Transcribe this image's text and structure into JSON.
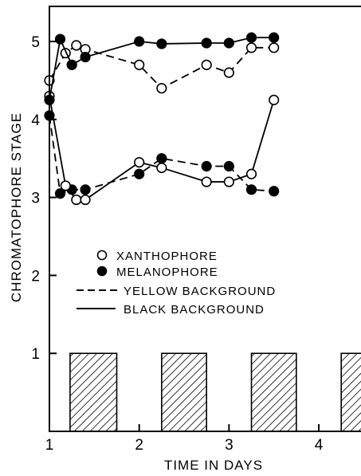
{
  "chart_data": {
    "type": "line",
    "title": "",
    "xlabel": "TIME IN DAYS",
    "ylabel": "CHROMATOPHORE STAGE",
    "xlim": [
      1,
      4.55
    ],
    "ylim": [
      0,
      5.45
    ],
    "xticks": [
      "1",
      "2",
      "3",
      "4"
    ],
    "yticks": [
      "1",
      "2",
      "3",
      "4",
      "5"
    ],
    "grid": false,
    "legend_position": "center-left",
    "legend": {
      "xanthophore": "XANTHOPHORE",
      "melanophore": "MELANOPHORE",
      "yellow_background": "YELLOW BACKGROUND",
      "black_background": "BLACK BACKGROUND"
    },
    "series": [
      {
        "name": "XANTHOPHORE",
        "background": "YELLOW BACKGROUND",
        "marker": "open-circle",
        "line": "dashed",
        "x": [
          1.0,
          1.18,
          1.3,
          1.4,
          2.0,
          2.25,
          2.75,
          3.0,
          3.25,
          3.5
        ],
        "y": [
          4.5,
          4.85,
          4.95,
          4.9,
          4.7,
          4.4,
          4.7,
          4.6,
          4.92,
          4.92
        ]
      },
      {
        "name": "MELANOPHORE",
        "background": "YELLOW BACKGROUND",
        "marker": "filled-circle",
        "line": "dashed",
        "x": [
          1.0,
          1.12,
          1.25,
          1.4,
          2.0,
          2.25,
          2.75,
          3.0,
          3.25,
          3.5
        ],
        "y": [
          4.05,
          3.05,
          3.1,
          3.1,
          3.3,
          3.5,
          3.4,
          3.4,
          3.1,
          3.08
        ]
      },
      {
        "name": "XANTHOPHORE",
        "background": "BLACK BACKGROUND",
        "marker": "open-circle",
        "line": "solid",
        "x": [
          1.0,
          1.18,
          1.3,
          1.4,
          2.0,
          2.25,
          2.75,
          3.0,
          3.25,
          3.5
        ],
        "y": [
          4.3,
          3.15,
          2.97,
          2.97,
          3.45,
          3.38,
          3.2,
          3.2,
          3.3,
          4.25
        ]
      },
      {
        "name": "MELANOPHORE",
        "background": "BLACK BACKGROUND",
        "marker": "filled-circle",
        "line": "solid",
        "x": [
          1.0,
          1.12,
          1.25,
          1.4,
          2.0,
          2.25,
          2.75,
          3.0,
          3.25,
          3.5
        ],
        "y": [
          4.25,
          5.03,
          4.7,
          4.8,
          5.0,
          4.97,
          4.98,
          4.98,
          5.05,
          5.05
        ]
      }
    ],
    "dark_periods_days": [
      [
        1.23,
        1.75
      ],
      [
        2.25,
        2.75
      ],
      [
        3.25,
        3.75
      ],
      [
        4.25,
        4.55
      ]
    ]
  },
  "style": {
    "ink": "#000000",
    "background": "#ffffff"
  }
}
